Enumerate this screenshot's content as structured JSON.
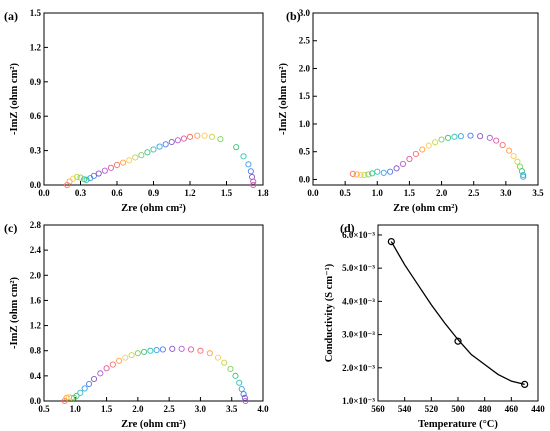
{
  "figure": {
    "chart_data": [
      {
        "type": "scatter",
        "panel_label": "(a)",
        "xlabel": "Zre (ohm cm²)",
        "ylabel": "-ImZ (ohm cm²)",
        "xlim": [
          0,
          1.8
        ],
        "ylim": [
          0,
          1.5
        ],
        "xticks": [
          0.0,
          0.3,
          0.6,
          0.9,
          1.2,
          1.5,
          1.8
        ],
        "yticks": [
          0.0,
          0.3,
          0.6,
          0.9,
          1.2,
          1.5
        ],
        "xtick_labels": [
          "0.0",
          "0.3",
          "0.6",
          "0.9",
          "1.2",
          "1.5",
          "1.8"
        ],
        "ytick_labels": [
          "0.0",
          "0.3",
          "0.6",
          "0.9",
          "1.2",
          "1.5"
        ],
        "points": [
          [
            0.19,
            0.0
          ],
          [
            0.21,
            0.03
          ],
          [
            0.24,
            0.055
          ],
          [
            0.27,
            0.07
          ],
          [
            0.3,
            0.065
          ],
          [
            0.33,
            0.05
          ],
          [
            0.35,
            0.045
          ],
          [
            0.38,
            0.06
          ],
          [
            0.41,
            0.08
          ],
          [
            0.45,
            0.1
          ],
          [
            0.5,
            0.125
          ],
          [
            0.55,
            0.15
          ],
          [
            0.6,
            0.175
          ],
          [
            0.65,
            0.195
          ],
          [
            0.7,
            0.215
          ],
          [
            0.75,
            0.24
          ],
          [
            0.8,
            0.26
          ],
          [
            0.85,
            0.285
          ],
          [
            0.9,
            0.31
          ],
          [
            0.95,
            0.335
          ],
          [
            1.0,
            0.355
          ],
          [
            1.05,
            0.375
          ],
          [
            1.1,
            0.39
          ],
          [
            1.15,
            0.405
          ],
          [
            1.2,
            0.42
          ],
          [
            1.26,
            0.43
          ],
          [
            1.32,
            0.43
          ],
          [
            1.38,
            0.42
          ],
          [
            1.45,
            0.4
          ],
          [
            1.58,
            0.33
          ],
          [
            1.64,
            0.25
          ],
          [
            1.68,
            0.18
          ],
          [
            1.7,
            0.12
          ],
          [
            1.71,
            0.07
          ],
          [
            1.72,
            0.03
          ],
          [
            1.72,
            0.0
          ]
        ]
      },
      {
        "type": "scatter",
        "panel_label": "(b)",
        "xlabel": "Zre (ohm cm²)",
        "ylabel": "-ImZ (ohm cm²)",
        "xlim": [
          0,
          3.5
        ],
        "ylim": [
          -0.1,
          3.0
        ],
        "xticks": [
          0.0,
          0.5,
          1.0,
          1.5,
          2.0,
          2.5,
          3.0,
          3.5
        ],
        "yticks": [
          0.0,
          0.5,
          1.0,
          1.5,
          2.0,
          2.5,
          3.0
        ],
        "xtick_labels": [
          "0.0",
          "0.5",
          "1.0",
          "1.5",
          "2.0",
          "2.5",
          "3.0",
          "3.5"
        ],
        "ytick_labels": [
          "0.0",
          "0.5",
          "1.0",
          "1.5",
          "2.0",
          "2.5",
          "3.0"
        ],
        "points": [
          [
            0.62,
            0.1
          ],
          [
            0.68,
            0.09
          ],
          [
            0.74,
            0.08
          ],
          [
            0.8,
            0.08
          ],
          [
            0.86,
            0.09
          ],
          [
            0.92,
            0.11
          ],
          [
            1.0,
            0.14
          ],
          [
            1.1,
            0.12
          ],
          [
            1.2,
            0.14
          ],
          [
            1.3,
            0.2
          ],
          [
            1.4,
            0.28
          ],
          [
            1.5,
            0.37
          ],
          [
            1.6,
            0.46
          ],
          [
            1.7,
            0.54
          ],
          [
            1.8,
            0.61
          ],
          [
            1.9,
            0.67
          ],
          [
            2.0,
            0.72
          ],
          [
            2.1,
            0.75
          ],
          [
            2.2,
            0.77
          ],
          [
            2.3,
            0.78
          ],
          [
            2.45,
            0.79
          ],
          [
            2.6,
            0.78
          ],
          [
            2.75,
            0.75
          ],
          [
            2.85,
            0.7
          ],
          [
            2.95,
            0.62
          ],
          [
            3.05,
            0.52
          ],
          [
            3.12,
            0.42
          ],
          [
            3.18,
            0.32
          ],
          [
            3.22,
            0.23
          ],
          [
            3.25,
            0.15
          ],
          [
            3.27,
            0.08
          ],
          [
            3.27,
            0.05
          ]
        ]
      },
      {
        "type": "scatter",
        "panel_label": "(c)",
        "xlabel": "Zre (ohm cm²)",
        "ylabel": "-ImZ (ohm cm²)",
        "xlim": [
          0.5,
          4.0
        ],
        "ylim": [
          0,
          2.8
        ],
        "xticks": [
          0.5,
          1.0,
          1.5,
          2.0,
          2.5,
          3.0,
          3.5,
          4.0
        ],
        "yticks": [
          0.0,
          0.4,
          0.8,
          1.2,
          1.6,
          2.0,
          2.4,
          2.8
        ],
        "xtick_labels": [
          "0.5",
          "1.0",
          "1.5",
          "2.0",
          "2.5",
          "3.0",
          "3.5",
          "4.0"
        ],
        "ytick_labels": [
          "0.0",
          "0.4",
          "0.8",
          "1.2",
          "1.6",
          "2.0",
          "2.4",
          "2.8"
        ],
        "points": [
          [
            0.83,
            0.0
          ],
          [
            0.86,
            0.05
          ],
          [
            0.9,
            0.06
          ],
          [
            0.94,
            0.05
          ],
          [
            0.98,
            0.05
          ],
          [
            1.02,
            0.08
          ],
          [
            1.08,
            0.13
          ],
          [
            1.15,
            0.2
          ],
          [
            1.22,
            0.27
          ],
          [
            1.3,
            0.35
          ],
          [
            1.4,
            0.44
          ],
          [
            1.5,
            0.52
          ],
          [
            1.6,
            0.58
          ],
          [
            1.7,
            0.64
          ],
          [
            1.8,
            0.69
          ],
          [
            1.9,
            0.73
          ],
          [
            2.0,
            0.76
          ],
          [
            2.1,
            0.78
          ],
          [
            2.2,
            0.8
          ],
          [
            2.3,
            0.81
          ],
          [
            2.4,
            0.82
          ],
          [
            2.55,
            0.83
          ],
          [
            2.7,
            0.83
          ],
          [
            2.85,
            0.82
          ],
          [
            3.0,
            0.8
          ],
          [
            3.15,
            0.76
          ],
          [
            3.28,
            0.69
          ],
          [
            3.38,
            0.61
          ],
          [
            3.48,
            0.51
          ],
          [
            3.56,
            0.4
          ],
          [
            3.62,
            0.29
          ],
          [
            3.66,
            0.19
          ],
          [
            3.69,
            0.11
          ],
          [
            3.71,
            0.05
          ],
          [
            3.72,
            0.0
          ]
        ]
      },
      {
        "type": "scatter",
        "panel_label": "(d)",
        "xlabel": "Temperature (°C)",
        "ylabel": "Conductivity (S cm⁻¹)",
        "xlim": [
          560,
          440
        ],
        "ylim": [
          0.001,
          0.0063
        ],
        "xticks": [
          560,
          540,
          520,
          500,
          480,
          460,
          440
        ],
        "yticks": [
          0.001,
          0.002,
          0.003,
          0.004,
          0.005,
          0.006
        ],
        "xtick_labels": [
          "560",
          "540",
          "520",
          "500",
          "480",
          "460",
          "440"
        ],
        "ytick_labels": [
          "1.0×10⁻³",
          "2.0×10⁻³",
          "3.0×10⁻³",
          "4.0×10⁻³",
          "5.0×10⁻³",
          "6.0×10⁻³"
        ],
        "points": [
          [
            550,
            0.0058
          ],
          [
            500,
            0.0028
          ],
          [
            450,
            0.0015
          ]
        ],
        "fit_curve": [
          [
            550,
            0.0058
          ],
          [
            540,
            0.0051
          ],
          [
            530,
            0.0045
          ],
          [
            520,
            0.0039
          ],
          [
            510,
            0.00335
          ],
          [
            500,
            0.00285
          ],
          [
            490,
            0.0024
          ],
          [
            480,
            0.0021
          ],
          [
            470,
            0.0018
          ],
          [
            460,
            0.0016
          ],
          [
            450,
            0.0015
          ]
        ]
      }
    ]
  }
}
